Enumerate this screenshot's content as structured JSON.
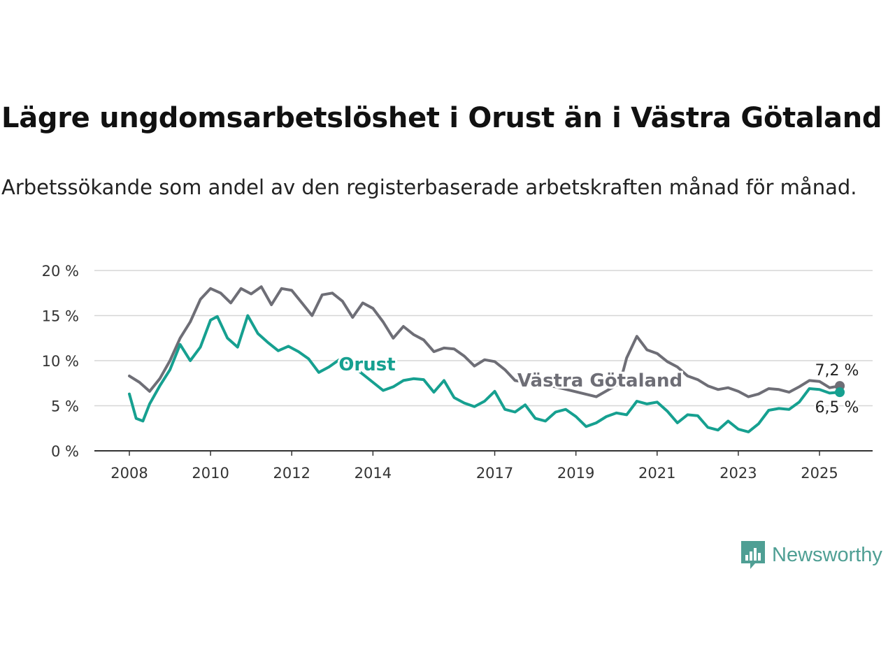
{
  "header": {
    "title": "Lägre ungdomsarbetslöshet i Orust än i Västra Götaland",
    "subtitle": "Arbetssökande som andel av den registerbaserade arbetskraften månad för månad."
  },
  "brand": {
    "name": "Newsworthy",
    "icon": "bar-chart-speech-bubble-icon",
    "color": "#4f9f94"
  },
  "chart_data": {
    "type": "line",
    "x_ticks": [
      "2008",
      "2010",
      "2012",
      "2014",
      "2017",
      "2019",
      "2021",
      "2023",
      "2025"
    ],
    "y_ticks": [
      "0 %",
      "5 %",
      "10 %",
      "15 %",
      "20 %"
    ],
    "ylim": [
      0,
      20
    ],
    "xlim": [
      "2007-10",
      "2025-12"
    ],
    "grid": "horizontal",
    "series": [
      {
        "name": "Västra Götaland",
        "color": "#6e6e76",
        "end_label": "7,2 %",
        "points": [
          [
            "2008-01",
            8.3
          ],
          [
            "2008-04",
            7.6
          ],
          [
            "2008-07",
            6.6
          ],
          [
            "2008-10",
            8.0
          ],
          [
            "2009-01",
            10.0
          ],
          [
            "2009-04",
            12.5
          ],
          [
            "2009-07",
            14.3
          ],
          [
            "2009-10",
            16.8
          ],
          [
            "2010-01",
            18.0
          ],
          [
            "2010-04",
            17.5
          ],
          [
            "2010-07",
            16.4
          ],
          [
            "2010-10",
            18.0
          ],
          [
            "2011-01",
            17.4
          ],
          [
            "2011-04",
            18.2
          ],
          [
            "2011-07",
            16.2
          ],
          [
            "2011-10",
            18.0
          ],
          [
            "2012-01",
            17.8
          ],
          [
            "2012-04",
            16.4
          ],
          [
            "2012-07",
            15.0
          ],
          [
            "2012-10",
            17.3
          ],
          [
            "2013-01",
            17.5
          ],
          [
            "2013-04",
            16.6
          ],
          [
            "2013-07",
            14.8
          ],
          [
            "2013-10",
            16.4
          ],
          [
            "2014-01",
            15.8
          ],
          [
            "2014-04",
            14.3
          ],
          [
            "2014-07",
            12.5
          ],
          [
            "2014-10",
            13.8
          ],
          [
            "2015-01",
            12.9
          ],
          [
            "2015-04",
            12.3
          ],
          [
            "2015-07",
            11.0
          ],
          [
            "2015-10",
            11.4
          ],
          [
            "2016-01",
            11.3
          ],
          [
            "2016-04",
            10.5
          ],
          [
            "2016-07",
            9.4
          ],
          [
            "2016-10",
            10.1
          ],
          [
            "2017-01",
            9.9
          ],
          [
            "2017-04",
            9.0
          ],
          [
            "2017-07",
            7.8
          ],
          [
            "2018-07",
            7.1
          ],
          [
            "2019-07",
            6.0
          ],
          [
            "2020-02",
            7.5
          ],
          [
            "2020-04",
            10.3
          ],
          [
            "2020-07",
            12.7
          ],
          [
            "2020-10",
            11.2
          ],
          [
            "2021-01",
            10.8
          ],
          [
            "2021-04",
            9.9
          ],
          [
            "2021-07",
            9.3
          ],
          [
            "2021-10",
            8.3
          ],
          [
            "2022-01",
            7.9
          ],
          [
            "2022-04",
            7.2
          ],
          [
            "2022-07",
            6.8
          ],
          [
            "2022-10",
            7.0
          ],
          [
            "2023-01",
            6.6
          ],
          [
            "2023-04",
            6.0
          ],
          [
            "2023-07",
            6.3
          ],
          [
            "2023-10",
            6.9
          ],
          [
            "2024-01",
            6.8
          ],
          [
            "2024-04",
            6.5
          ],
          [
            "2024-07",
            7.1
          ],
          [
            "2024-10",
            7.8
          ],
          [
            "2025-01",
            7.7
          ],
          [
            "2025-04",
            7.0
          ],
          [
            "2025-07",
            7.2
          ]
        ]
      },
      {
        "name": "Orust",
        "color": "#16a090",
        "end_label": "6,5 %",
        "points": [
          [
            "2008-01",
            6.3
          ],
          [
            "2008-03",
            3.6
          ],
          [
            "2008-05",
            3.3
          ],
          [
            "2008-07",
            5.2
          ],
          [
            "2008-10",
            7.2
          ],
          [
            "2009-01",
            9.0
          ],
          [
            "2009-04",
            11.8
          ],
          [
            "2009-07",
            10.0
          ],
          [
            "2009-10",
            11.5
          ],
          [
            "2010-01",
            14.5
          ],
          [
            "2010-03",
            14.9
          ],
          [
            "2010-06",
            12.5
          ],
          [
            "2010-09",
            11.5
          ],
          [
            "2010-12",
            15.0
          ],
          [
            "2011-03",
            13.0
          ],
          [
            "2011-06",
            12.0
          ],
          [
            "2011-09",
            11.1
          ],
          [
            "2011-12",
            11.6
          ],
          [
            "2012-03",
            11.0
          ],
          [
            "2012-06",
            10.2
          ],
          [
            "2012-09",
            8.7
          ],
          [
            "2012-12",
            9.3
          ],
          [
            "2013-03",
            10.1
          ],
          [
            "2013-06",
            9.7
          ],
          [
            "2014-01",
            7.6
          ],
          [
            "2014-04",
            6.7
          ],
          [
            "2014-07",
            7.1
          ],
          [
            "2014-10",
            7.8
          ],
          [
            "2015-01",
            8.0
          ],
          [
            "2015-04",
            7.9
          ],
          [
            "2015-07",
            6.5
          ],
          [
            "2015-10",
            7.8
          ],
          [
            "2016-01",
            5.9
          ],
          [
            "2016-04",
            5.3
          ],
          [
            "2016-07",
            4.9
          ],
          [
            "2016-10",
            5.5
          ],
          [
            "2017-01",
            6.6
          ],
          [
            "2017-04",
            4.6
          ],
          [
            "2017-07",
            4.3
          ],
          [
            "2017-10",
            5.1
          ],
          [
            "2018-01",
            3.6
          ],
          [
            "2018-04",
            3.3
          ],
          [
            "2018-07",
            4.3
          ],
          [
            "2018-10",
            4.6
          ],
          [
            "2019-01",
            3.8
          ],
          [
            "2019-04",
            2.7
          ],
          [
            "2019-07",
            3.1
          ],
          [
            "2019-10",
            3.8
          ],
          [
            "2020-01",
            4.2
          ],
          [
            "2020-04",
            4.0
          ],
          [
            "2020-07",
            5.5
          ],
          [
            "2020-10",
            5.2
          ],
          [
            "2021-01",
            5.4
          ],
          [
            "2021-04",
            4.4
          ],
          [
            "2021-07",
            3.1
          ],
          [
            "2021-10",
            4.0
          ],
          [
            "2022-01",
            3.9
          ],
          [
            "2022-04",
            2.6
          ],
          [
            "2022-07",
            2.3
          ],
          [
            "2022-10",
            3.3
          ],
          [
            "2023-01",
            2.4
          ],
          [
            "2023-04",
            2.1
          ],
          [
            "2023-07",
            3.0
          ],
          [
            "2023-10",
            4.5
          ],
          [
            "2024-01",
            4.7
          ],
          [
            "2024-04",
            4.6
          ],
          [
            "2024-07",
            5.4
          ],
          [
            "2024-10",
            6.9
          ],
          [
            "2025-01",
            6.8
          ],
          [
            "2025-04",
            6.4
          ],
          [
            "2025-07",
            6.5
          ]
        ]
      }
    ]
  }
}
